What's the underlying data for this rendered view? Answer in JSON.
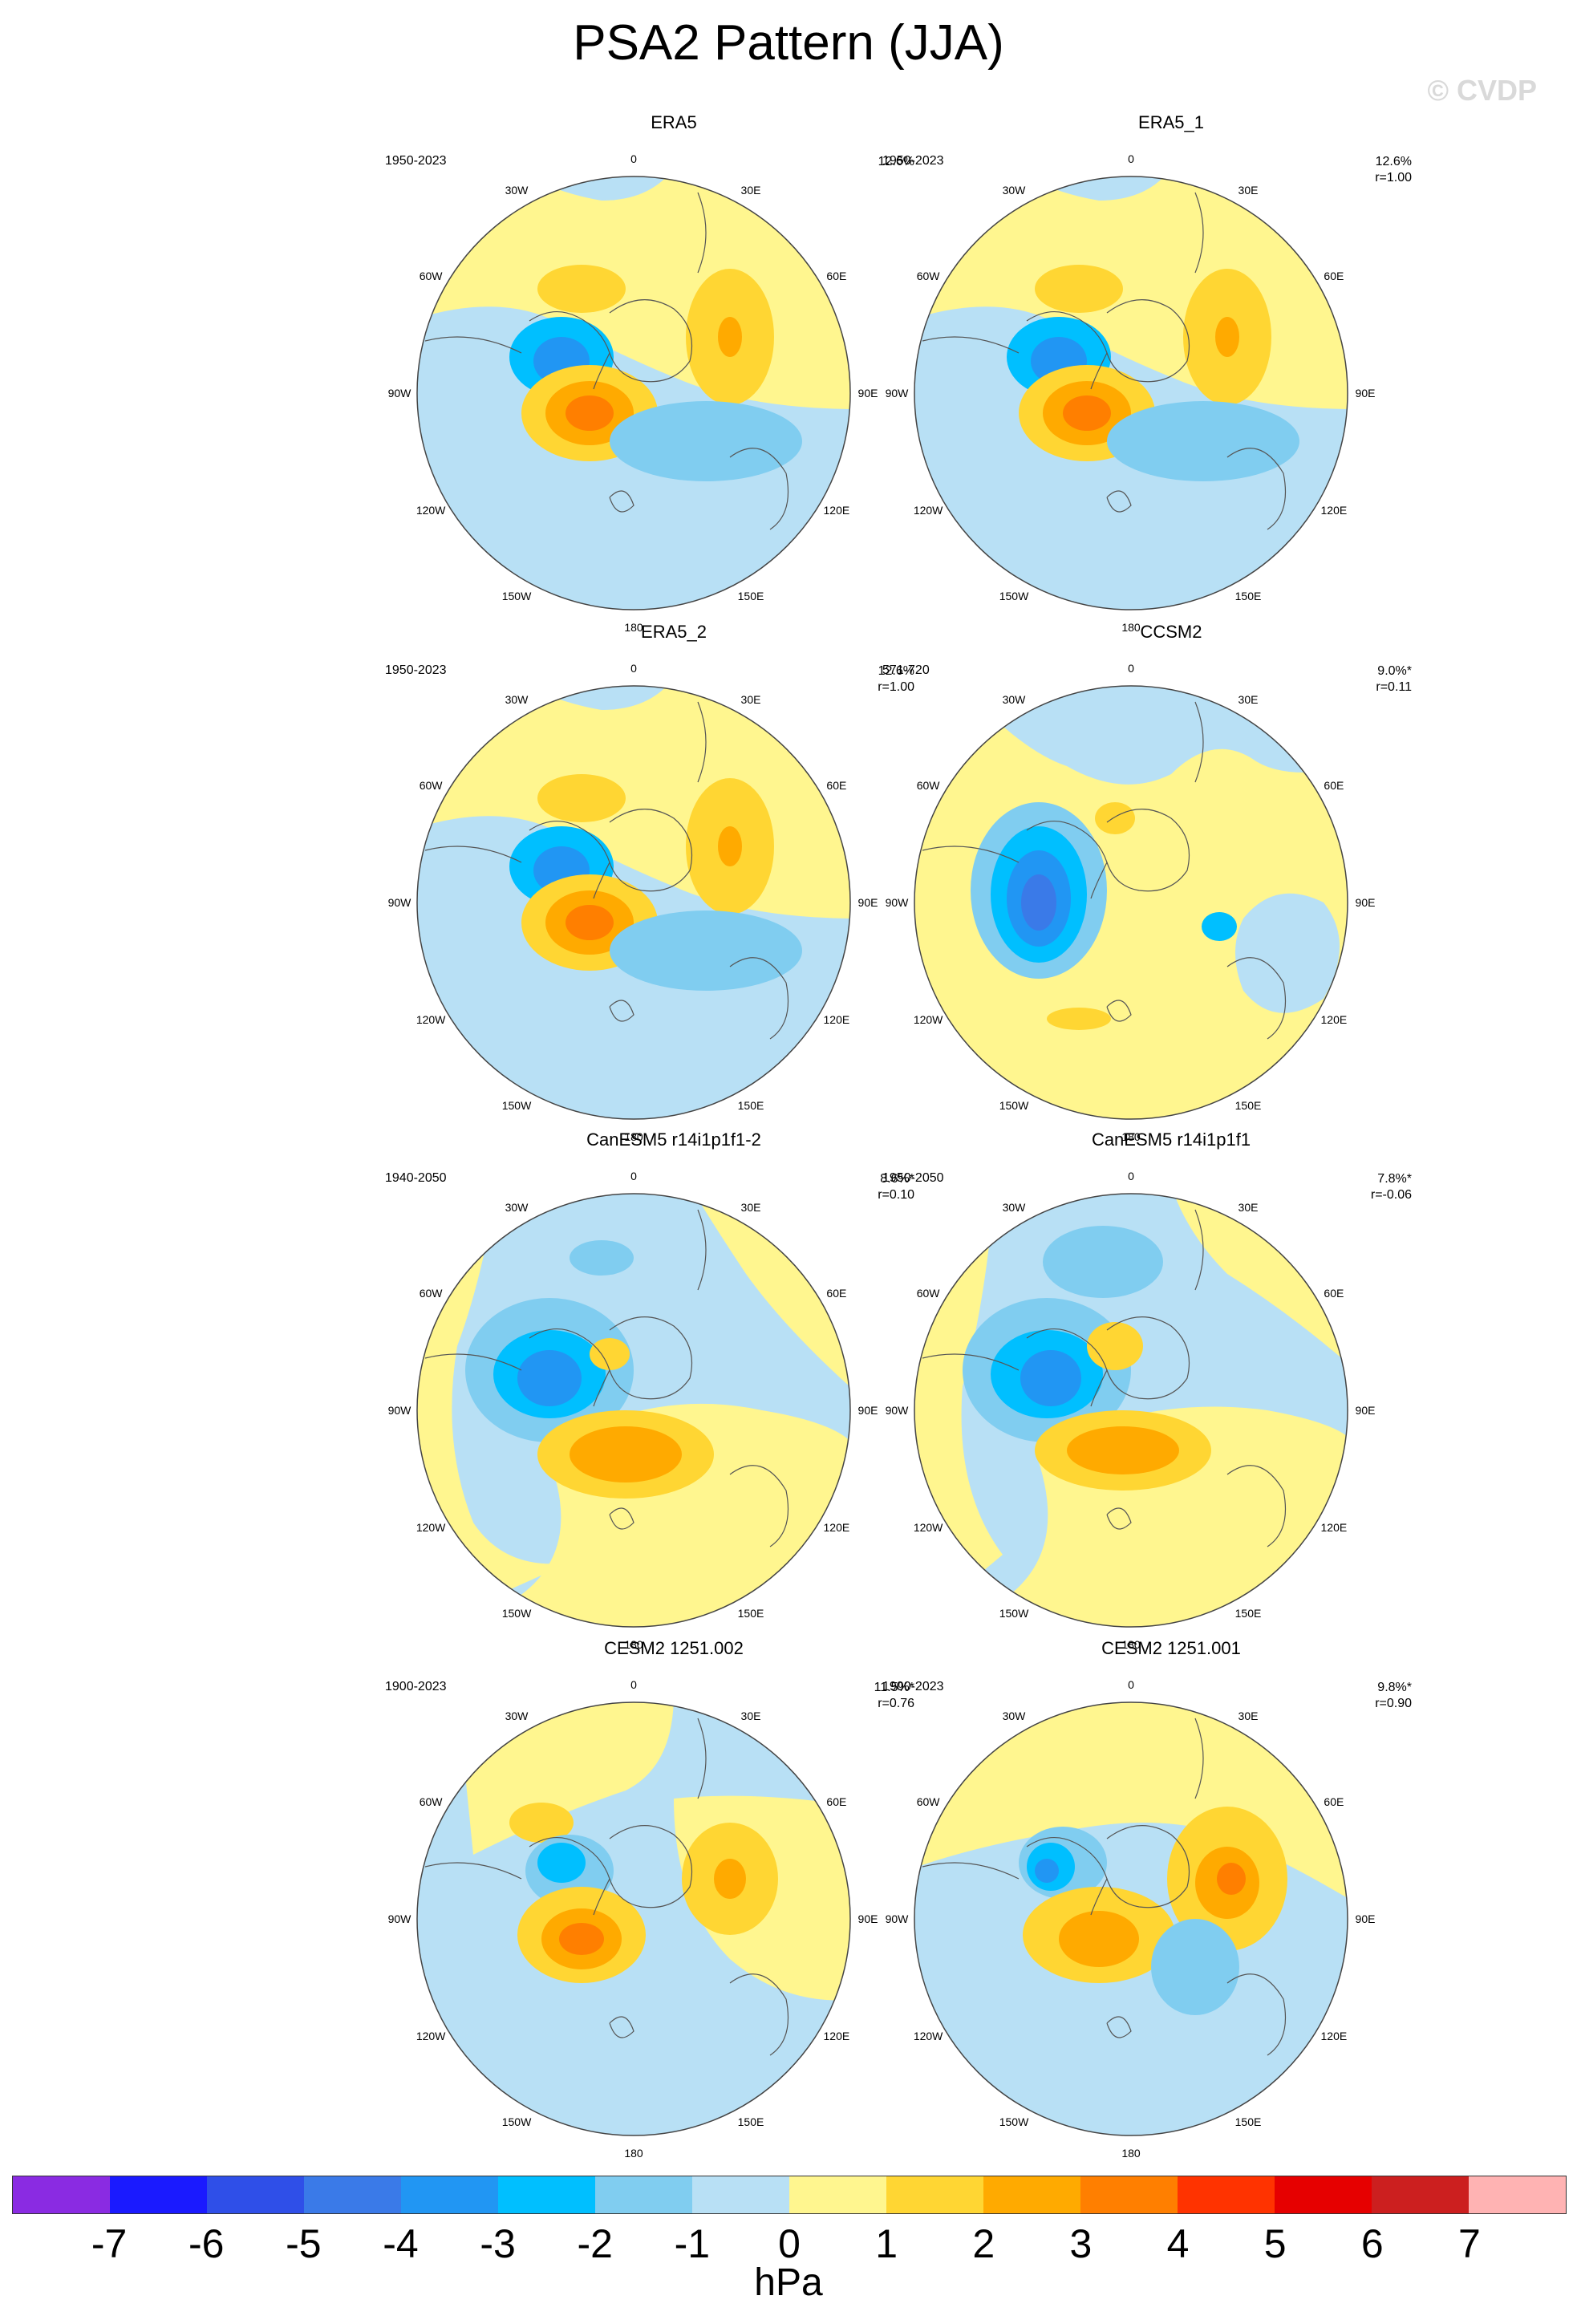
{
  "title": "PSA2 Pattern (JJA)",
  "watermark": "© CVDP",
  "lon_labels": [
    "0",
    "30E",
    "60E",
    "90E",
    "120E",
    "150E",
    "180",
    "150W",
    "120W",
    "90W",
    "60W",
    "30W"
  ],
  "panels": [
    {
      "name": "ERA5",
      "years": "1950-2023",
      "pct": "12.6%",
      "r": ""
    },
    {
      "name": "ERA5_1",
      "years": "1950-2023",
      "pct": "12.6%",
      "r": "r=1.00"
    },
    {
      "name": "ERA5_2",
      "years": "1950-2023",
      "pct": "12.6%",
      "r": "r=1.00"
    },
    {
      "name": "CCSM2",
      "years": "571-720",
      "pct": "9.0%*",
      "r": "r=0.11"
    },
    {
      "name": "CanESM5 r14i1p1f1-2",
      "years": "1940-2050",
      "pct": "8.6%*",
      "r": "r=0.10"
    },
    {
      "name": "CanESM5 r14i1p1f1",
      "years": "1950-2050",
      "pct": "7.8%*",
      "r": "r=-0.06"
    },
    {
      "name": "CESM2 1251.002",
      "years": "1900-2023",
      "pct": "11.5%*",
      "r": "r=0.76"
    },
    {
      "name": "CESM2 1251.001",
      "years": "1900-2023",
      "pct": "9.8%*",
      "r": "r=0.90"
    }
  ],
  "colorbar": {
    "units": "hPa",
    "ticks": [
      "-7",
      "-6",
      "-5",
      "-4",
      "-3",
      "-2",
      "-1",
      "0",
      "1",
      "2",
      "3",
      "4",
      "5",
      "6",
      "7"
    ],
    "colors": [
      "#8a2be2",
      "#1a1aff",
      "#2f4fe8",
      "#3a7ae8",
      "#2196f3",
      "#00bfff",
      "#80cdf0",
      "#b8e0f5",
      "#fff68f",
      "#ffd633",
      "#ffaa00",
      "#ff7f00",
      "#ff3300",
      "#e60000",
      "#cc1f1f",
      "#ffb3b3"
    ]
  }
}
